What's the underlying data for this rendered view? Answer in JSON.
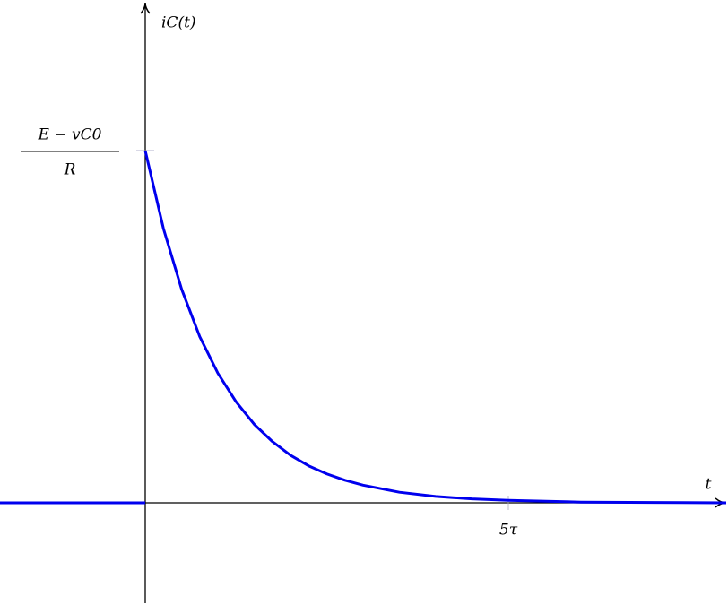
{
  "chart_data": {
    "type": "line",
    "x_label": "t",
    "y_label": "iC(t)",
    "series": [
      {
        "color": "#0000ee",
        "x": [
          -2,
          0
        ],
        "values": [
          0,
          0
        ]
      },
      {
        "color": "#0000ee",
        "x": [
          0,
          0.25,
          0.5,
          0.75,
          1,
          1.25,
          1.5,
          1.75,
          2,
          2.25,
          2.5,
          2.75,
          3,
          3.5,
          4,
          4.5,
          5,
          6,
          7,
          8
        ],
        "values": [
          1,
          0.779,
          0.607,
          0.472,
          0.368,
          0.287,
          0.223,
          0.174,
          0.135,
          0.105,
          0.082,
          0.064,
          0.05,
          0.03,
          0.018,
          0.011,
          0.007,
          0.002,
          0.001,
          0
        ]
      }
    ],
    "xlim": [
      -2,
      8
    ],
    "ylim": [
      -0.28,
      1.42
    ],
    "xticks": [
      {
        "value": 5,
        "label": "5τ"
      }
    ],
    "yticks": [
      {
        "value": 1,
        "label": "E − vC0",
        "label_denominator": "R"
      }
    ]
  }
}
